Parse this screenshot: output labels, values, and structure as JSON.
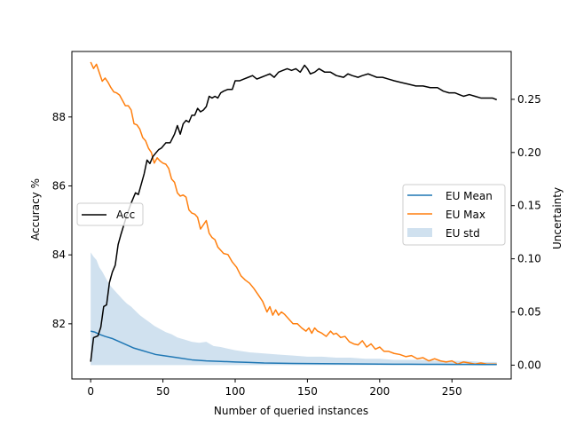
{
  "chart_data": {
    "type": "line",
    "title": "",
    "xlabel": "Number of queried instances",
    "ylabel_left": "Accuracy %",
    "ylabel_right": "Uncertainty",
    "xlim": [
      -13,
      291
    ],
    "ylim_left": [
      80.4,
      89.9
    ],
    "ylim_right": [
      -0.013,
      0.295
    ],
    "x_ticks": [
      0,
      50,
      100,
      150,
      200,
      250
    ],
    "y_left_ticks": [
      82,
      84,
      86,
      88
    ],
    "y_right_ticks": [
      0.0,
      0.05,
      0.1,
      0.15,
      0.2,
      0.25
    ],
    "grid": false,
    "legend_left": {
      "position": "center-left",
      "entries": [
        "Acc"
      ]
    },
    "legend_right": {
      "position": "center-right",
      "entries": [
        "EU Mean",
        "EU Max",
        "EU std"
      ]
    },
    "series": [
      {
        "name": "Acc",
        "axis": "left",
        "color": "#000000",
        "x": [
          0,
          2,
          5,
          7,
          9,
          11,
          13,
          15,
          17,
          19,
          21,
          25,
          28,
          31,
          33,
          35,
          37,
          39,
          41,
          43,
          45,
          47,
          49,
          52,
          55,
          58,
          60,
          62,
          64,
          66,
          68,
          70,
          72,
          74,
          76,
          78,
          80,
          82,
          84,
          86,
          88,
          90,
          92,
          95,
          98,
          100,
          103,
          106,
          109,
          112,
          115,
          118,
          121,
          124,
          127,
          130,
          133,
          136,
          139,
          142,
          145,
          148,
          150,
          152,
          155,
          158,
          162,
          166,
          170,
          175,
          178,
          181,
          185,
          188,
          192,
          195,
          198,
          202,
          206,
          210,
          215,
          220,
          225,
          230,
          235,
          240,
          244,
          248,
          252,
          255,
          258,
          262,
          266,
          270,
          274,
          278,
          281
        ],
        "y": [
          80.9,
          81.6,
          81.65,
          81.9,
          82.5,
          82.55,
          83.2,
          83.5,
          83.7,
          84.3,
          84.6,
          85.15,
          85.5,
          85.8,
          85.75,
          86.05,
          86.35,
          86.75,
          86.65,
          86.85,
          86.95,
          87.05,
          87.1,
          87.25,
          87.25,
          87.5,
          87.75,
          87.5,
          87.8,
          87.9,
          87.85,
          88.05,
          88.05,
          88.25,
          88.15,
          88.2,
          88.3,
          88.6,
          88.55,
          88.6,
          88.55,
          88.7,
          88.75,
          88.8,
          88.8,
          89.05,
          89.05,
          89.1,
          89.15,
          89.2,
          89.1,
          89.15,
          89.2,
          89.25,
          89.15,
          89.3,
          89.35,
          89.4,
          89.35,
          89.4,
          89.3,
          89.5,
          89.4,
          89.25,
          89.3,
          89.4,
          89.3,
          89.3,
          89.2,
          89.15,
          89.25,
          89.2,
          89.15,
          89.2,
          89.25,
          89.2,
          89.15,
          89.15,
          89.1,
          89.05,
          89.0,
          88.95,
          88.9,
          88.9,
          88.85,
          88.85,
          88.75,
          88.7,
          88.7,
          88.65,
          88.6,
          88.65,
          88.6,
          88.55,
          88.55,
          88.55,
          88.5
        ]
      },
      {
        "name": "EU Max",
        "axis": "right",
        "color": "#ff7f0e",
        "x": [
          0,
          2,
          4,
          6,
          8,
          10,
          12,
          14,
          16,
          18,
          20,
          22,
          24,
          26,
          28,
          30,
          32,
          34,
          36,
          38,
          40,
          42,
          44,
          46,
          48,
          50,
          52,
          54,
          56,
          58,
          60,
          62,
          64,
          66,
          68,
          70,
          72,
          74,
          76,
          78,
          80,
          82,
          84,
          86,
          88,
          90,
          92,
          95,
          98,
          101,
          104,
          107,
          110,
          113,
          116,
          119,
          122,
          124,
          126,
          128,
          130,
          132,
          134,
          136,
          138,
          140,
          143,
          146,
          149,
          151,
          153,
          155,
          157,
          160,
          163,
          166,
          168,
          170,
          173,
          176,
          179,
          182,
          185,
          188,
          191,
          194,
          197,
          200,
          203,
          206,
          210,
          214,
          218,
          222,
          226,
          230,
          234,
          238,
          242,
          246,
          250,
          254,
          258,
          262,
          266,
          270,
          274,
          278,
          281
        ],
        "y": [
          0.285,
          0.279,
          0.283,
          0.275,
          0.267,
          0.27,
          0.266,
          0.261,
          0.257,
          0.256,
          0.254,
          0.249,
          0.244,
          0.244,
          0.24,
          0.227,
          0.226,
          0.222,
          0.214,
          0.211,
          0.204,
          0.2,
          0.19,
          0.195,
          0.192,
          0.19,
          0.189,
          0.185,
          0.175,
          0.172,
          0.162,
          0.159,
          0.16,
          0.158,
          0.146,
          0.143,
          0.142,
          0.139,
          0.128,
          0.132,
          0.136,
          0.124,
          0.12,
          0.118,
          0.111,
          0.108,
          0.105,
          0.104,
          0.097,
          0.092,
          0.084,
          0.08,
          0.077,
          0.072,
          0.066,
          0.06,
          0.05,
          0.055,
          0.047,
          0.052,
          0.047,
          0.05,
          0.048,
          0.045,
          0.042,
          0.039,
          0.039,
          0.035,
          0.032,
          0.035,
          0.03,
          0.035,
          0.032,
          0.03,
          0.027,
          0.032,
          0.029,
          0.03,
          0.026,
          0.027,
          0.022,
          0.02,
          0.019,
          0.023,
          0.017,
          0.02,
          0.015,
          0.017,
          0.013,
          0.013,
          0.011,
          0.01,
          0.008,
          0.009,
          0.006,
          0.007,
          0.004,
          0.006,
          0.004,
          0.003,
          0.004,
          0.001,
          0.003,
          0.002,
          0.001,
          0.002,
          0.001,
          0.001,
          0.001
        ]
      },
      {
        "name": "EU Mean",
        "axis": "right",
        "color": "#1f77b4",
        "x": [
          0,
          3,
          6,
          10,
          15,
          20,
          25,
          30,
          35,
          40,
          45,
          50,
          60,
          70,
          80,
          90,
          100,
          110,
          120,
          130,
          140,
          150,
          160,
          170,
          180,
          190,
          200,
          210,
          220,
          230,
          240,
          250,
          260,
          270,
          281
        ],
        "y": [
          0.032,
          0.031,
          0.029,
          0.027,
          0.025,
          0.022,
          0.019,
          0.016,
          0.014,
          0.012,
          0.01,
          0.009,
          0.007,
          0.005,
          0.004,
          0.0035,
          0.003,
          0.0025,
          0.002,
          0.0018,
          0.0016,
          0.0015,
          0.0014,
          0.0013,
          0.0012,
          0.0011,
          0.001,
          0.0009,
          0.0009,
          0.0008,
          0.0008,
          0.0007,
          0.0007,
          0.0006,
          0.0006
        ]
      },
      {
        "name": "EU std",
        "axis": "right",
        "color": "#1f77b4",
        "kind": "band",
        "x": [
          0,
          2,
          4,
          6,
          8,
          10,
          12,
          14,
          16,
          18,
          20,
          22,
          25,
          28,
          31,
          34,
          37,
          40,
          44,
          48,
          52,
          56,
          60,
          65,
          70,
          75,
          80,
          85,
          90,
          100,
          110,
          120,
          130,
          140,
          150,
          160,
          170,
          180,
          190,
          200,
          210,
          220,
          230,
          240,
          250,
          260,
          270,
          281
        ],
        "upper": [
          0.106,
          0.102,
          0.099,
          0.092,
          0.088,
          0.083,
          0.078,
          0.074,
          0.071,
          0.068,
          0.065,
          0.062,
          0.058,
          0.055,
          0.051,
          0.047,
          0.044,
          0.041,
          0.037,
          0.034,
          0.031,
          0.029,
          0.026,
          0.024,
          0.022,
          0.021,
          0.022,
          0.018,
          0.017,
          0.014,
          0.012,
          0.011,
          0.01,
          0.009,
          0.008,
          0.008,
          0.007,
          0.007,
          0.006,
          0.006,
          0.005,
          0.005,
          0.005,
          0.004,
          0.004,
          0.004,
          0.003,
          0.003
        ],
        "lower": [
          0.0,
          0.0,
          0.0,
          0.0,
          0.0,
          0.0,
          0.0,
          0.0,
          0.0,
          0.0,
          0.0,
          0.0,
          0.0,
          0.0,
          0.0,
          0.0,
          0.0,
          0.0,
          0.0,
          0.0,
          0.0,
          0.0,
          0.0,
          0.0,
          0.0,
          0.0,
          0.0,
          0.0,
          0.0,
          0.0,
          0.0,
          0.0,
          0.0,
          0.0,
          0.0,
          0.0,
          0.0,
          0.0,
          0.0,
          0.0,
          0.0,
          0.0,
          0.0,
          0.0,
          0.0,
          0.0,
          0.0,
          0.0
        ]
      }
    ]
  },
  "colors": {
    "band_fill": "#d0e1ef",
    "acc": "#000000",
    "eu_mean": "#1f77b4",
    "eu_max": "#ff7f0e"
  }
}
